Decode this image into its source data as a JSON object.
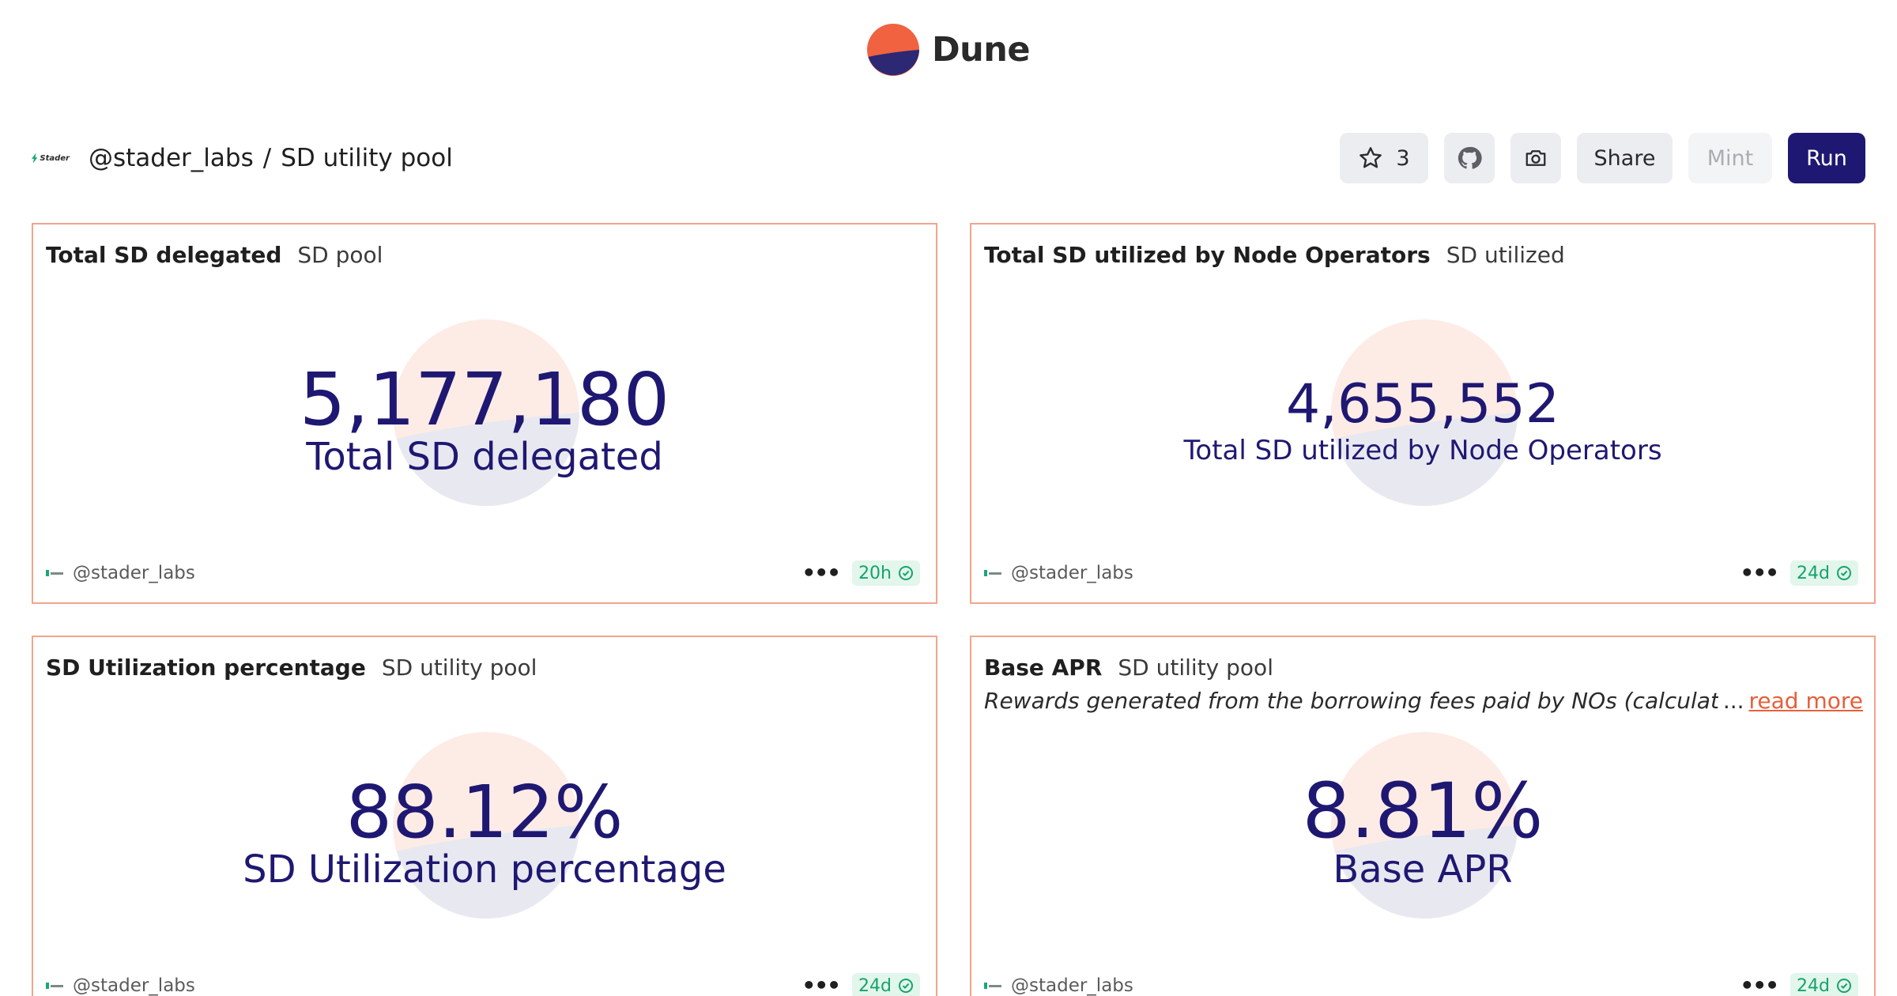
{
  "brand": {
    "name": "Dune",
    "logo_icon": "dune-logo-icon",
    "colors": {
      "top": "#f06240",
      "bottom": "#2c2874"
    }
  },
  "header": {
    "org_logo_text": "Stader",
    "owner": "@stader_labs",
    "separator": "/",
    "dashboard_name": "SD utility pool",
    "star_count": "3",
    "share_label": "Share",
    "mint_label": "Mint",
    "run_label": "Run",
    "accent": "#1f1872"
  },
  "cards": [
    {
      "title": "Total SD delegated",
      "subtitle": "SD pool",
      "value": "5,177,180",
      "label": "Total SD delegated",
      "owner": "@stader_labs",
      "freshness": "20h"
    },
    {
      "title": "Total SD utilized by Node Operators",
      "subtitle": "SD utilized",
      "value": "4,655,552",
      "label": "Total SD utilized by Node Operators",
      "owner": "@stader_labs",
      "freshness": "24d"
    },
    {
      "title": "SD Utilization percentage",
      "subtitle": "SD utility pool",
      "value": "88.12%",
      "label": "SD Utilization percentage",
      "owner": "@stader_labs",
      "freshness": "24d"
    },
    {
      "title": "Base APR",
      "subtitle": "SD utility pool",
      "description": "Rewards generated from the borrowing fees paid by NOs (calculated as Borr",
      "ellipsis": "...",
      "read_more": "read more",
      "value": "8.81%",
      "label": "Base APR",
      "owner": "@stader_labs",
      "freshness": "24d"
    }
  ]
}
